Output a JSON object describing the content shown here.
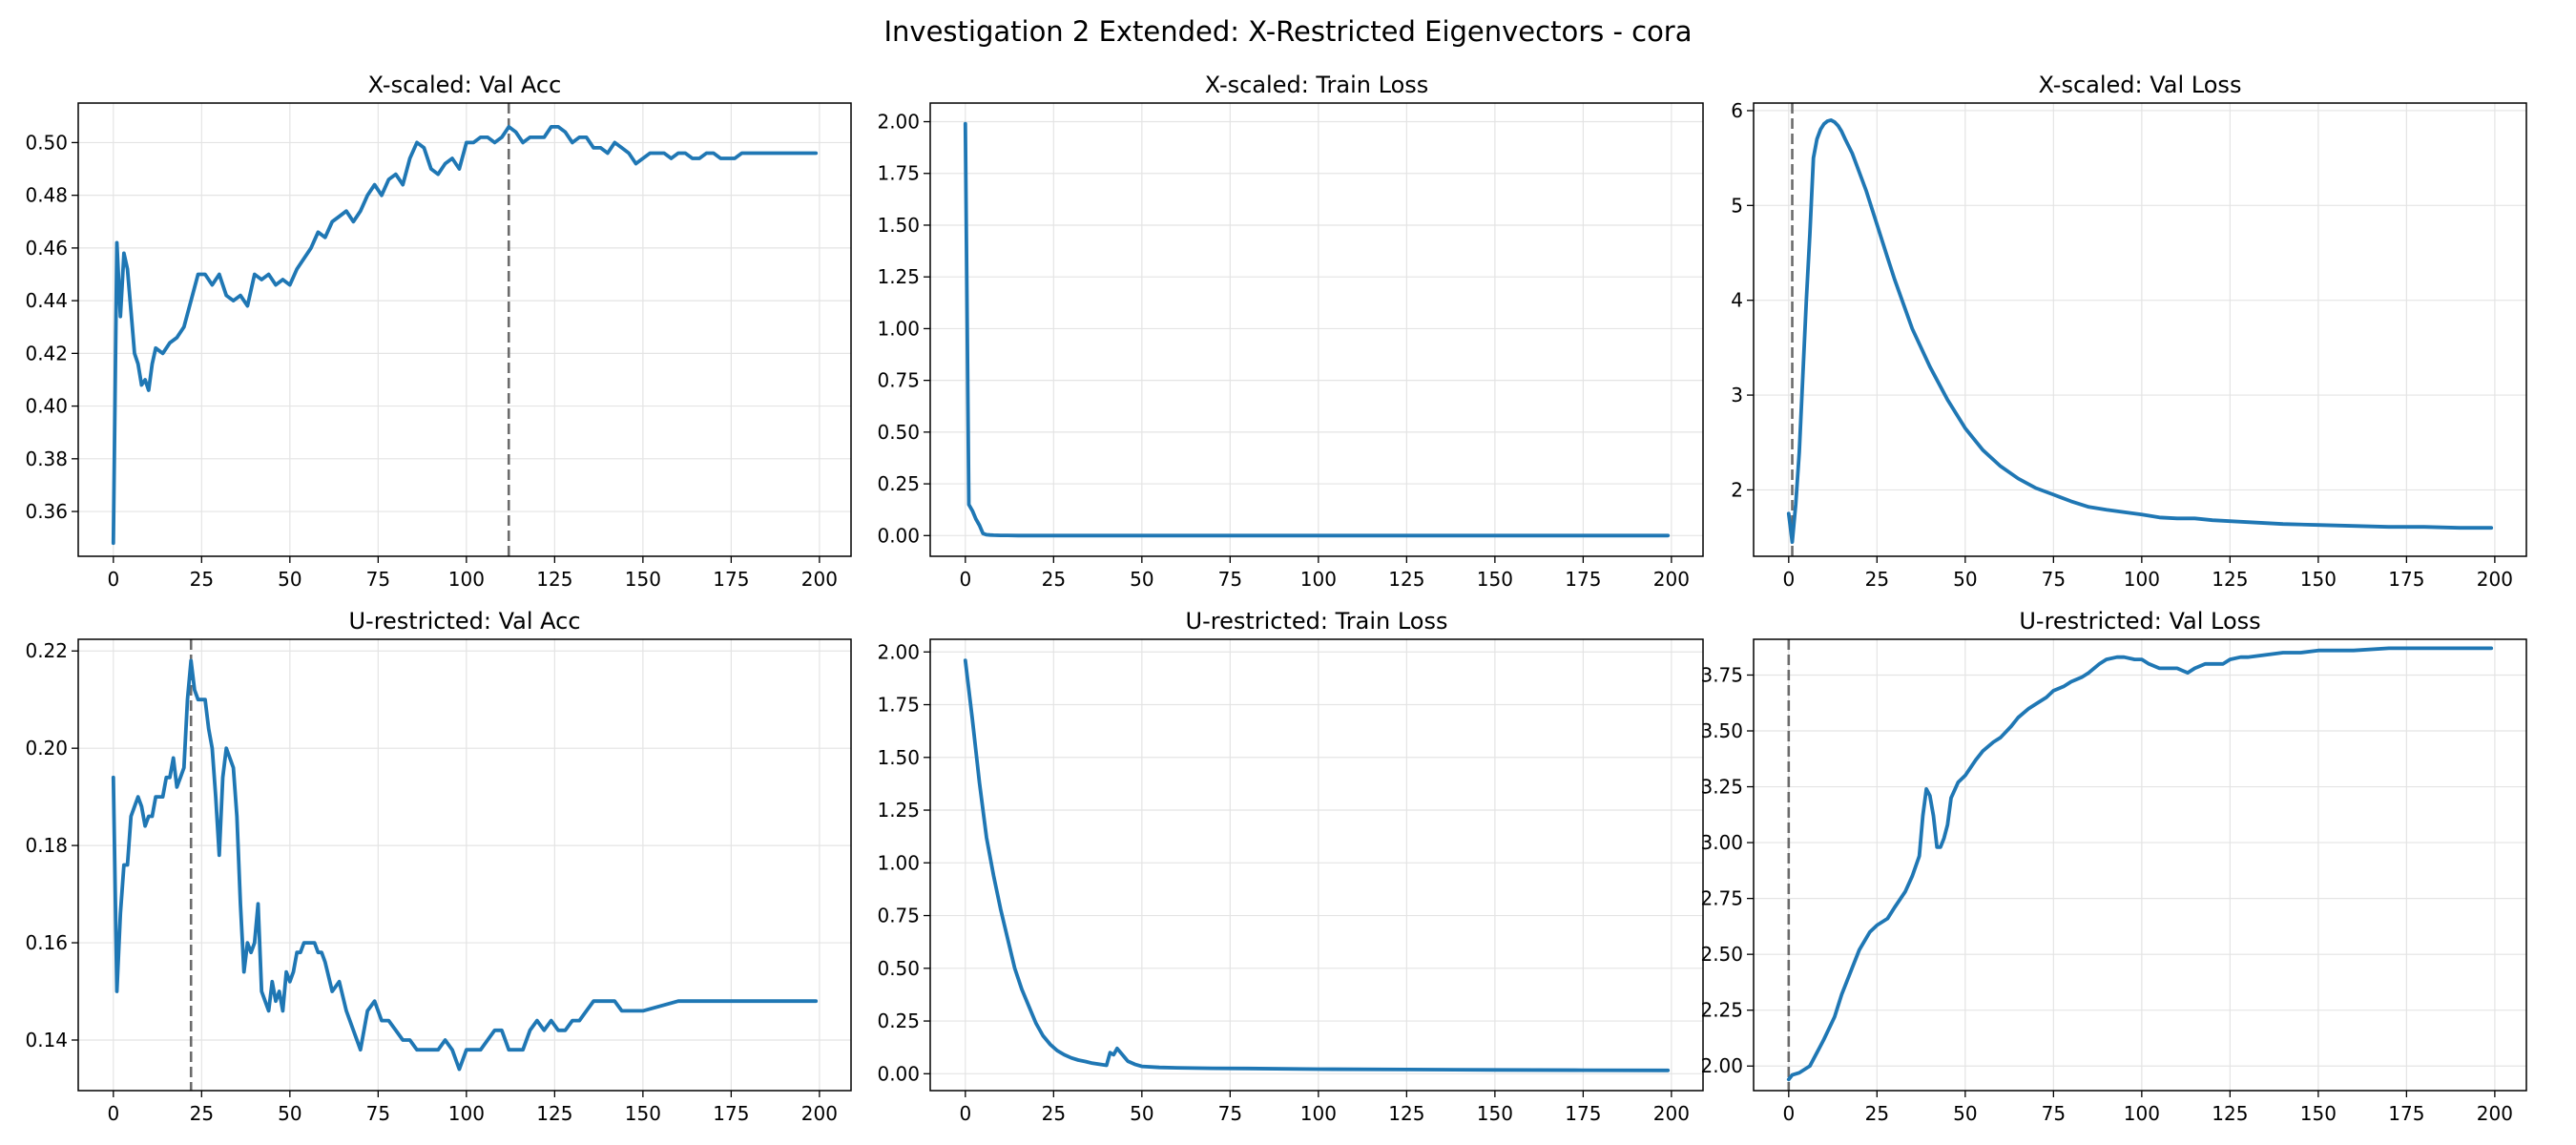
{
  "suptitle": "Investigation 2 Extended: X-Restricted Eigenvectors - cora",
  "colors": {
    "line": "#1f77b4",
    "marker": "#6b6b6b",
    "grid": "#e4e4e4"
  },
  "chart_data": [
    {
      "type": "line",
      "title": "X-scaled: Val Acc",
      "xlim": [
        -9.95,
        208.95
      ],
      "ylim": [
        0.343,
        0.515
      ],
      "xticks": [
        0,
        25,
        50,
        75,
        100,
        125,
        150,
        175,
        200
      ],
      "yticks": [
        0.36,
        0.38,
        0.4,
        0.42,
        0.44,
        0.46,
        0.48,
        0.5
      ],
      "ytick_labels": [
        "0.36",
        "0.38",
        "0.40",
        "0.42",
        "0.44",
        "0.46",
        "0.48",
        "0.50"
      ],
      "grid": true,
      "vline_x": 112,
      "x": [
        0,
        1,
        2,
        3,
        4,
        5,
        6,
        7,
        8,
        9,
        10,
        11,
        12,
        14,
        16,
        18,
        20,
        22,
        24,
        26,
        28,
        30,
        32,
        34,
        36,
        38,
        40,
        42,
        44,
        46,
        48,
        50,
        52,
        54,
        56,
        58,
        60,
        62,
        64,
        66,
        68,
        70,
        72,
        74,
        76,
        78,
        80,
        82,
        84,
        86,
        88,
        90,
        92,
        94,
        96,
        98,
        100,
        102,
        104,
        106,
        108,
        110,
        112,
        114,
        116,
        118,
        120,
        122,
        124,
        126,
        128,
        130,
        132,
        134,
        136,
        138,
        140,
        142,
        144,
        146,
        148,
        150,
        152,
        154,
        156,
        158,
        160,
        162,
        164,
        166,
        168,
        170,
        172,
        174,
        176,
        178,
        180,
        185,
        190,
        195,
        199
      ],
      "values": [
        0.348,
        0.462,
        0.434,
        0.458,
        0.452,
        0.436,
        0.42,
        0.416,
        0.408,
        0.41,
        0.406,
        0.416,
        0.422,
        0.42,
        0.424,
        0.426,
        0.43,
        0.44,
        0.45,
        0.45,
        0.446,
        0.45,
        0.442,
        0.44,
        0.442,
        0.438,
        0.45,
        0.448,
        0.45,
        0.446,
        0.448,
        0.446,
        0.452,
        0.456,
        0.46,
        0.466,
        0.464,
        0.47,
        0.472,
        0.474,
        0.47,
        0.474,
        0.48,
        0.484,
        0.48,
        0.486,
        0.488,
        0.484,
        0.494,
        0.5,
        0.498,
        0.49,
        0.488,
        0.492,
        0.494,
        0.49,
        0.5,
        0.5,
        0.502,
        0.502,
        0.5,
        0.502,
        0.506,
        0.504,
        0.5,
        0.502,
        0.502,
        0.502,
        0.506,
        0.506,
        0.504,
        0.5,
        0.502,
        0.502,
        0.498,
        0.498,
        0.496,
        0.5,
        0.498,
        0.496,
        0.492,
        0.494,
        0.496,
        0.496,
        0.496,
        0.494,
        0.496,
        0.496,
        0.494,
        0.494,
        0.496,
        0.496,
        0.494,
        0.494,
        0.494,
        0.496,
        0.496,
        0.496,
        0.496,
        0.496,
        0.496
      ]
    },
    {
      "type": "line",
      "title": "X-scaled: Train Loss",
      "xlim": [
        -9.95,
        208.95
      ],
      "ylim": [
        -0.1,
        2.09
      ],
      "xticks": [
        0,
        25,
        50,
        75,
        100,
        125,
        150,
        175,
        200
      ],
      "yticks": [
        0.0,
        0.25,
        0.5,
        0.75,
        1.0,
        1.25,
        1.5,
        1.75,
        2.0
      ],
      "ytick_labels": [
        "0.00",
        "0.25",
        "0.50",
        "0.75",
        "1.00",
        "1.25",
        "1.50",
        "1.75",
        "2.00"
      ],
      "grid": true,
      "vline_x": null,
      "x": [
        0,
        1,
        2,
        3,
        4,
        5,
        6,
        7,
        8,
        10,
        12,
        15,
        20,
        30,
        50,
        100,
        150,
        199
      ],
      "values": [
        1.99,
        0.15,
        0.12,
        0.08,
        0.05,
        0.01,
        0.004,
        0.003,
        0.002,
        0.001,
        0.001,
        0.0,
        0.0,
        0.0,
        0.0,
        0.0,
        0.0,
        0.0
      ]
    },
    {
      "type": "line",
      "title": "X-scaled: Val Loss",
      "xlim": [
        -9.95,
        208.95
      ],
      "ylim": [
        1.3,
        6.08
      ],
      "xticks": [
        0,
        25,
        50,
        75,
        100,
        125,
        150,
        175,
        200
      ],
      "yticks": [
        2,
        3,
        4,
        5,
        6
      ],
      "ytick_labels": [
        "2",
        "3",
        "4",
        "5",
        "6"
      ],
      "grid": true,
      "vline_x": 1,
      "x": [
        0,
        1,
        2,
        3,
        4,
        5,
        6,
        7,
        8,
        9,
        10,
        11,
        12,
        13,
        14,
        15,
        16,
        18,
        20,
        22,
        25,
        28,
        30,
        35,
        40,
        45,
        50,
        55,
        60,
        65,
        70,
        75,
        80,
        85,
        90,
        100,
        105,
        110,
        115,
        120,
        130,
        140,
        150,
        160,
        170,
        180,
        190,
        199
      ],
      "values": [
        1.75,
        1.45,
        1.85,
        2.4,
        3.2,
        4.0,
        4.7,
        5.5,
        5.7,
        5.8,
        5.86,
        5.89,
        5.9,
        5.88,
        5.84,
        5.78,
        5.7,
        5.55,
        5.35,
        5.15,
        4.8,
        4.45,
        4.22,
        3.7,
        3.3,
        2.95,
        2.65,
        2.42,
        2.25,
        2.12,
        2.02,
        1.95,
        1.88,
        1.82,
        1.79,
        1.74,
        1.71,
        1.7,
        1.7,
        1.68,
        1.66,
        1.64,
        1.63,
        1.62,
        1.61,
        1.61,
        1.6,
        1.6
      ]
    },
    {
      "type": "line",
      "title": "U-restricted: Val Acc",
      "xlim": [
        -9.95,
        208.95
      ],
      "ylim": [
        0.1296,
        0.2224
      ],
      "xticks": [
        0,
        25,
        50,
        75,
        100,
        125,
        150,
        175,
        200
      ],
      "yticks": [
        0.14,
        0.16,
        0.18,
        0.2,
        0.22
      ],
      "ytick_labels": [
        "0.14",
        "0.16",
        "0.18",
        "0.20",
        "0.22"
      ],
      "grid": true,
      "vline_x": 22,
      "x": [
        0,
        1,
        2,
        3,
        4,
        5,
        6,
        7,
        8,
        9,
        10,
        11,
        12,
        13,
        14,
        15,
        16,
        17,
        18,
        19,
        20,
        21,
        22,
        23,
        24,
        25,
        26,
        27,
        28,
        29,
        30,
        31,
        32,
        33,
        34,
        35,
        36,
        37,
        38,
        39,
        40,
        41,
        42,
        43,
        44,
        45,
        46,
        47,
        48,
        49,
        50,
        51,
        52,
        53,
        54,
        55,
        56,
        57,
        58,
        59,
        60,
        62,
        64,
        66,
        68,
        70,
        72,
        74,
        76,
        78,
        80,
        82,
        84,
        86,
        88,
        90,
        92,
        94,
        96,
        98,
        100,
        102,
        104,
        106,
        108,
        110,
        112,
        114,
        116,
        118,
        120,
        122,
        124,
        126,
        128,
        130,
        132,
        134,
        136,
        138,
        140,
        142,
        144,
        146,
        148,
        150,
        160,
        170,
        180,
        190,
        199
      ],
      "values": [
        0.194,
        0.15,
        0.166,
        0.176,
        0.176,
        0.186,
        0.188,
        0.19,
        0.188,
        0.184,
        0.186,
        0.186,
        0.19,
        0.19,
        0.19,
        0.194,
        0.194,
        0.198,
        0.192,
        0.194,
        0.196,
        0.21,
        0.218,
        0.212,
        0.21,
        0.21,
        0.21,
        0.204,
        0.2,
        0.19,
        0.178,
        0.194,
        0.2,
        0.198,
        0.196,
        0.186,
        0.168,
        0.154,
        0.16,
        0.158,
        0.16,
        0.168,
        0.15,
        0.148,
        0.146,
        0.152,
        0.148,
        0.15,
        0.146,
        0.154,
        0.152,
        0.154,
        0.158,
        0.158,
        0.16,
        0.16,
        0.16,
        0.16,
        0.158,
        0.158,
        0.156,
        0.15,
        0.152,
        0.146,
        0.142,
        0.138,
        0.146,
        0.148,
        0.144,
        0.144,
        0.142,
        0.14,
        0.14,
        0.138,
        0.138,
        0.138,
        0.138,
        0.14,
        0.138,
        0.134,
        0.138,
        0.138,
        0.138,
        0.14,
        0.142,
        0.142,
        0.138,
        0.138,
        0.138,
        0.142,
        0.144,
        0.142,
        0.144,
        0.142,
        0.142,
        0.144,
        0.144,
        0.146,
        0.148,
        0.148,
        0.148,
        0.148,
        0.146,
        0.146,
        0.146,
        0.146,
        0.148,
        0.148,
        0.148,
        0.148,
        0.148
      ]
    },
    {
      "type": "line",
      "title": "U-restricted: Train Loss",
      "xlim": [
        -9.95,
        208.95
      ],
      "ylim": [
        -0.08,
        2.06
      ],
      "xticks": [
        0,
        25,
        50,
        75,
        100,
        125,
        150,
        175,
        200
      ],
      "yticks": [
        0.0,
        0.25,
        0.5,
        0.75,
        1.0,
        1.25,
        1.5,
        1.75,
        2.0
      ],
      "ytick_labels": [
        "0.00",
        "0.25",
        "0.50",
        "0.75",
        "1.00",
        "1.25",
        "1.50",
        "1.75",
        "2.00"
      ],
      "grid": true,
      "vline_x": null,
      "x": [
        0,
        2,
        4,
        6,
        8,
        10,
        12,
        14,
        16,
        18,
        20,
        22,
        24,
        26,
        28,
        30,
        32,
        34,
        36,
        38,
        40,
        41,
        42,
        43,
        44,
        45,
        46,
        48,
        50,
        55,
        60,
        70,
        80,
        100,
        125,
        150,
        175,
        199
      ],
      "values": [
        1.96,
        1.68,
        1.38,
        1.12,
        0.94,
        0.78,
        0.64,
        0.5,
        0.4,
        0.32,
        0.24,
        0.18,
        0.14,
        0.11,
        0.09,
        0.075,
        0.065,
        0.058,
        0.05,
        0.045,
        0.04,
        0.1,
        0.09,
        0.12,
        0.1,
        0.08,
        0.06,
        0.045,
        0.035,
        0.03,
        0.028,
        0.026,
        0.025,
        0.022,
        0.02,
        0.018,
        0.017,
        0.016
      ]
    },
    {
      "type": "line",
      "title": "U-restricted: Val Loss",
      "xlim": [
        -9.95,
        208.95
      ],
      "ylim": [
        1.89,
        3.91
      ],
      "xticks": [
        0,
        25,
        50,
        75,
        100,
        125,
        150,
        175,
        200
      ],
      "yticks": [
        2.0,
        2.25,
        2.5,
        2.75,
        3.0,
        3.25,
        3.5,
        3.75
      ],
      "ytick_labels": [
        "2.00",
        "2.25",
        "2.50",
        "2.75",
        "3.00",
        "3.25",
        "3.50",
        "3.75"
      ],
      "grid": true,
      "vline_x": 0,
      "x": [
        0,
        1,
        3,
        6,
        8,
        10,
        13,
        15,
        18,
        20,
        23,
        25,
        28,
        30,
        33,
        35,
        37,
        38,
        39,
        40,
        41,
        42,
        43,
        44,
        45,
        46,
        48,
        50,
        53,
        55,
        58,
        60,
        63,
        65,
        68,
        70,
        73,
        75,
        78,
        80,
        83,
        85,
        88,
        90,
        93,
        95,
        98,
        100,
        102,
        105,
        108,
        110,
        113,
        115,
        118,
        120,
        123,
        125,
        128,
        130,
        135,
        140,
        145,
        150,
        160,
        170,
        180,
        190,
        199
      ],
      "values": [
        1.94,
        1.96,
        1.97,
        2.0,
        2.06,
        2.12,
        2.22,
        2.32,
        2.44,
        2.52,
        2.6,
        2.63,
        2.66,
        2.71,
        2.78,
        2.85,
        2.94,
        3.12,
        3.24,
        3.21,
        3.12,
        2.98,
        2.98,
        3.02,
        3.08,
        3.2,
        3.27,
        3.3,
        3.37,
        3.41,
        3.45,
        3.47,
        3.52,
        3.56,
        3.6,
        3.62,
        3.65,
        3.68,
        3.7,
        3.72,
        3.74,
        3.76,
        3.8,
        3.82,
        3.83,
        3.83,
        3.82,
        3.82,
        3.8,
        3.78,
        3.78,
        3.78,
        3.76,
        3.78,
        3.8,
        3.8,
        3.8,
        3.82,
        3.83,
        3.83,
        3.84,
        3.85,
        3.85,
        3.86,
        3.86,
        3.87,
        3.87,
        3.87,
        3.87
      ]
    }
  ]
}
